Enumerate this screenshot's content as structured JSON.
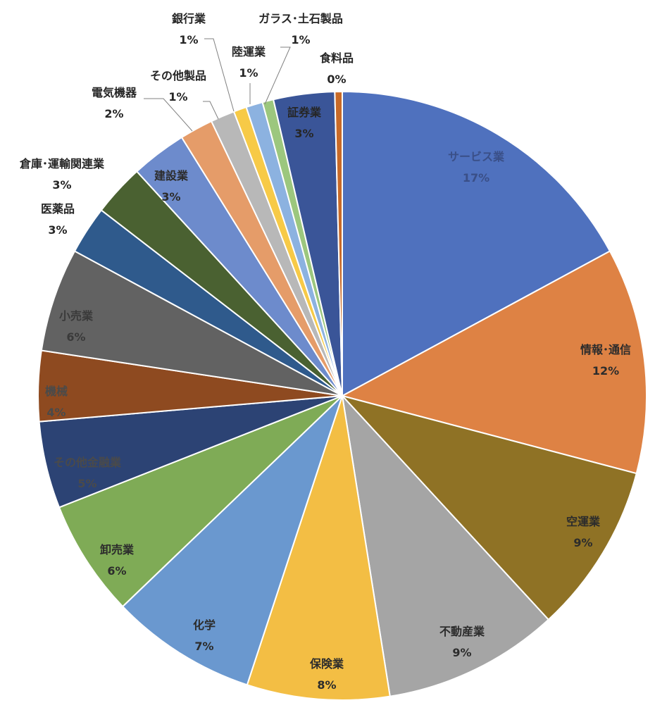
{
  "chart_data": {
    "type": "pie",
    "title": "",
    "slices": [
      {
        "label": "サービス業",
        "pct_label": "17%",
        "value": 17.4,
        "color": "#4f71be"
      },
      {
        "label": "情報･通信",
        "pct_label": "12%",
        "value": 12.2,
        "color": "#de8244"
      },
      {
        "label": "空運業",
        "pct_label": "9%",
        "value": 9.2,
        "color": "#8f7225"
      },
      {
        "label": "不動産業",
        "pct_label": "9%",
        "value": 9.5,
        "color": "#a5a5a5"
      },
      {
        "label": "保険業",
        "pct_label": "8%",
        "value": 7.7,
        "color": "#f3be44"
      },
      {
        "label": "化学",
        "pct_label": "7%",
        "value": 7.9,
        "color": "#6a98cf"
      },
      {
        "label": "卸売業",
        "pct_label": "6%",
        "value": 6.3,
        "color": "#7fab56"
      },
      {
        "label": "その他金融業",
        "pct_label": "5%",
        "value": 4.7,
        "color": "#2c4374"
      },
      {
        "label": "機械",
        "pct_label": "4%",
        "value": 3.8,
        "color": "#8e4a20"
      },
      {
        "label": "小売業",
        "pct_label": "6%",
        "value": 5.6,
        "color": "#626262"
      },
      {
        "label": "医薬品",
        "pct_label": "3%",
        "value": 2.6,
        "color": "#2f5a8c"
      },
      {
        "label": "倉庫･運輸関連業",
        "pct_label": "3%",
        "value": 2.8,
        "color": "#4a6131"
      },
      {
        "label": "建設業",
        "pct_label": "3%",
        "value": 3.0,
        "color": "#6d8bcc"
      },
      {
        "label": "電気機器",
        "pct_label": "2%",
        "value": 1.8,
        "color": "#e59c69"
      },
      {
        "label": "その他製品",
        "pct_label": "1%",
        "value": 1.3,
        "color": "#b8b8b8"
      },
      {
        "label": "銀行業",
        "pct_label": "1%",
        "value": 0.7,
        "color": "#f7ca47"
      },
      {
        "label": "陸運業",
        "pct_label": "1%",
        "value": 0.9,
        "color": "#8cb2e0"
      },
      {
        "label": "ガラス･土石製品",
        "pct_label": "1%",
        "value": 0.6,
        "color": "#9cc77e"
      },
      {
        "label": "証券業",
        "pct_label": "3%",
        "value": 3.3,
        "color": "#3a5598"
      },
      {
        "label": "食料品",
        "pct_label": "0%",
        "value": 0.4,
        "color": "#c86a28"
      }
    ]
  }
}
